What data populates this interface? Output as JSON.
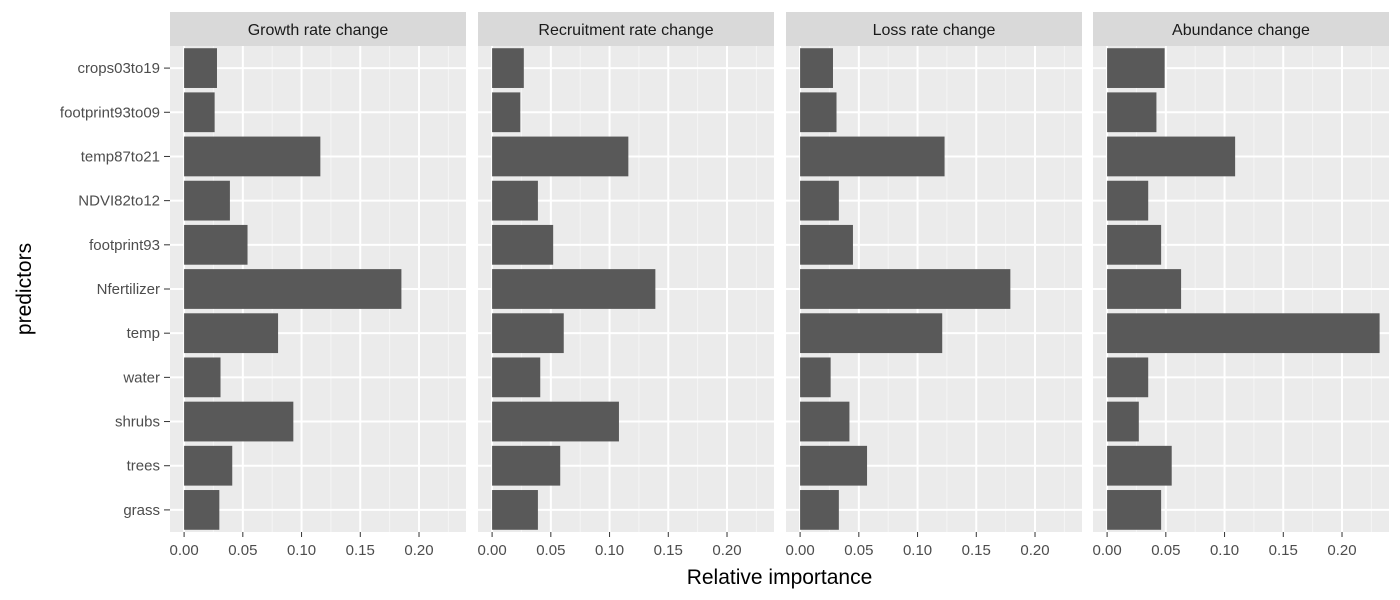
{
  "chart_data": {
    "type": "bar",
    "orientation": "horizontal",
    "xlabel": "Relative importance",
    "ylabel": "predictors",
    "xlim": [
      -0.012,
      0.24
    ],
    "x_ticks": [
      0.0,
      0.05,
      0.1,
      0.15,
      0.2
    ],
    "x_tick_labels": [
      "0.00",
      "0.05",
      "0.10",
      "0.15",
      "0.20"
    ],
    "categories": [
      "crops03to19",
      "footprint93to09",
      "temp87to21",
      "NDVI82to12",
      "footprint93",
      "Nfertilizer",
      "temp",
      "water",
      "shrubs",
      "trees",
      "grass"
    ],
    "grid": true,
    "colors": {
      "panel_bg": "#ebebeb",
      "strip_bg": "#d9d9d9",
      "bar": "#595959",
      "grid_major": "#ffffff",
      "grid_minor": "#f5f5f5",
      "tick": "#333333"
    },
    "facets": [
      {
        "title": "Growth rate change",
        "values": [
          0.028,
          0.026,
          0.116,
          0.039,
          0.054,
          0.185,
          0.08,
          0.031,
          0.093,
          0.041,
          0.03
        ]
      },
      {
        "title": "Recruitment rate change",
        "values": [
          0.027,
          0.024,
          0.116,
          0.039,
          0.052,
          0.139,
          0.061,
          0.041,
          0.108,
          0.058,
          0.039
        ]
      },
      {
        "title": "Loss rate change",
        "values": [
          0.028,
          0.031,
          0.123,
          0.033,
          0.045,
          0.179,
          0.121,
          0.026,
          0.042,
          0.057,
          0.033
        ]
      },
      {
        "title": "Abundance change",
        "values": [
          0.049,
          0.042,
          0.109,
          0.035,
          0.046,
          0.063,
          0.232,
          0.035,
          0.027,
          0.055,
          0.046
        ]
      }
    ]
  }
}
